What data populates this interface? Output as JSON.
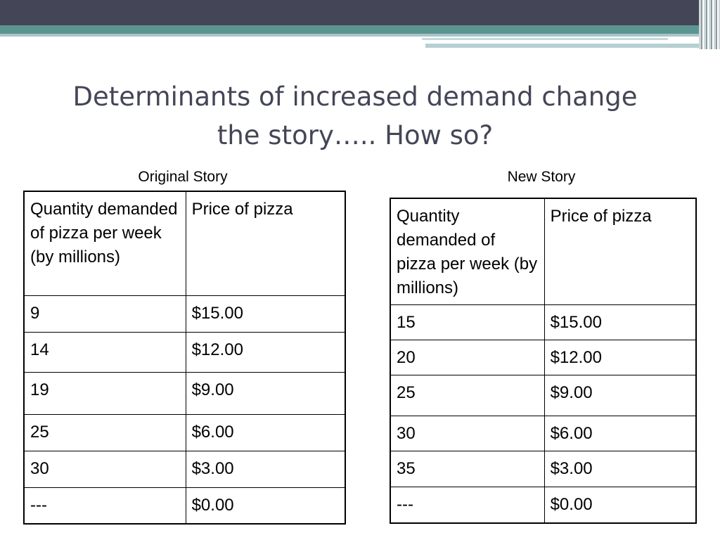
{
  "slide": {
    "title_line1": "Determinants of increased demand change",
    "title_line2": "the story…..  How so?"
  },
  "tables": [
    {
      "caption": "Original Story",
      "headers": [
        "Quantity demanded of pizza per week (by millions)",
        "Price of pizza"
      ],
      "rows": [
        [
          "9",
          "$15.00"
        ],
        [
          "14",
          "$12.00"
        ],
        [
          "19",
          "$9.00"
        ],
        [
          "25",
          "$6.00"
        ],
        [
          "30",
          "$3.00"
        ],
        [
          "---",
          "$0.00"
        ]
      ]
    },
    {
      "caption": "New Story",
      "headers": [
        "Quantity demanded of pizza per week (by millions)",
        "Price of pizza"
      ],
      "rows": [
        [
          "15",
          "$15.00"
        ],
        [
          "20",
          "$12.00"
        ],
        [
          "25",
          "$9.00"
        ],
        [
          "30",
          "$6.00"
        ],
        [
          "35",
          "$3.00"
        ],
        [
          "---",
          "$0.00"
        ]
      ]
    }
  ]
}
